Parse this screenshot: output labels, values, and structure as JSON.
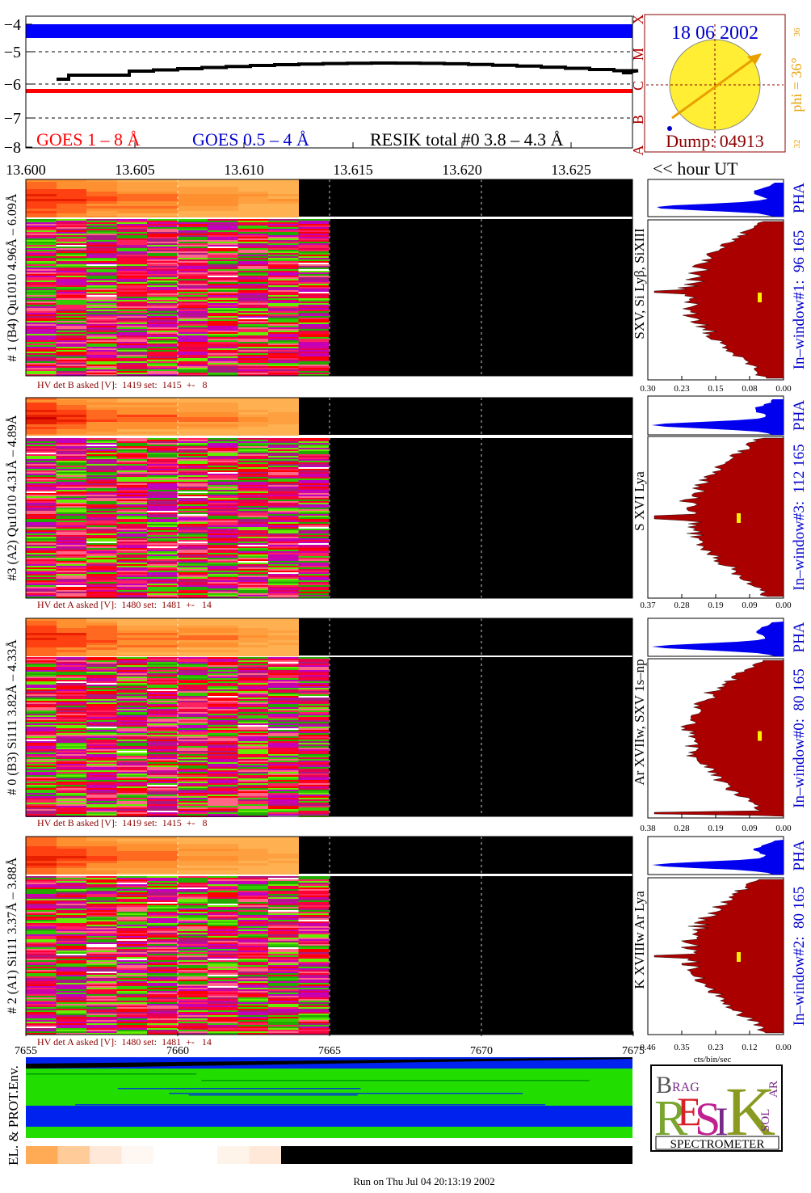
{
  "goes": {
    "yticks": [
      "−4",
      "−5",
      "−6",
      "−7",
      "−8"
    ],
    "class_labels": [
      "A",
      "B",
      "C",
      "M",
      "X"
    ],
    "legend": [
      "GOES 1 – 8 Å",
      "GOES 0.5 – 4 Å",
      "RESIK total #0  3.8 – 4.3 Å"
    ]
  },
  "sun": {
    "date": "18 06 2002",
    "dump": "Dump: 04913",
    "phi": "phi = 36°",
    "scale_top": "36",
    "scale_bottom": "32"
  },
  "wavelength_ticks": [
    "13.600",
    "13.605",
    "13.610",
    "13.615",
    "13.620",
    "13.625"
  ],
  "time_label": "<< hour UT",
  "detectors": [
    {
      "label": "# 1 (B4) Qu1010 4.96Å – 6.09Å",
      "hv": "HV det B asked [V]:  1419 set:  1415  +-   8",
      "lines": "SXV, Si Lyβ, SiXIII",
      "window": "In–window#1:  96 165",
      "pha": "PHA",
      "ticks": [
        "0.30",
        "0.23",
        "0.15",
        "0.08",
        "0.00"
      ]
    },
    {
      "label": "#3 (A2) Qu1010  4.31Å – 4.89Å",
      "hv": "HV det A asked [V]:  1480 set:  1481  +-   14",
      "lines": "S XVI Lya",
      "window": "In–window#3:  112 165",
      "pha": "PHA",
      "ticks": [
        "0.37",
        "0.28",
        "0.19",
        "0.09",
        "0.00"
      ]
    },
    {
      "label": "# 0 (B3) Si111  3.82Å – 4.33Å",
      "hv": "HV det B asked [V]:  1419 set:  1415  +-   8",
      "lines": "Ar XVIIw, SXV 1s–np",
      "window": "In–window#0:  80 165",
      "pha": "PHA",
      "ticks": [
        "0.38",
        "0.28",
        "0.19",
        "0.09",
        "0.00"
      ]
    },
    {
      "label": "# 2 (A1) Si111  3.37Å – 3.88Å",
      "hv": "HV det A asked [V]:  1480 set:  1481  +-   14",
      "lines": "K XVIIIw  Ar Lya",
      "window": "In–window#2:  80 165",
      "pha": "PHA",
      "ticks": [
        "0.46",
        "0.35",
        "0.23",
        "0.12",
        "0.00"
      ]
    }
  ],
  "time_ticks": [
    "7655",
    "7660",
    "7665",
    "7670",
    "7675"
  ],
  "units": "cts/bin/sec",
  "env_label": "EL. & PROT.Env.",
  "logo": {
    "letters": [
      "B",
      "RAG",
      "R",
      "E",
      "S",
      "I",
      "K",
      "SOL",
      "AR"
    ],
    "name": "SPECTROMETER"
  },
  "footer": "Run on Thu Jul 04 20:13:19 2002"
}
